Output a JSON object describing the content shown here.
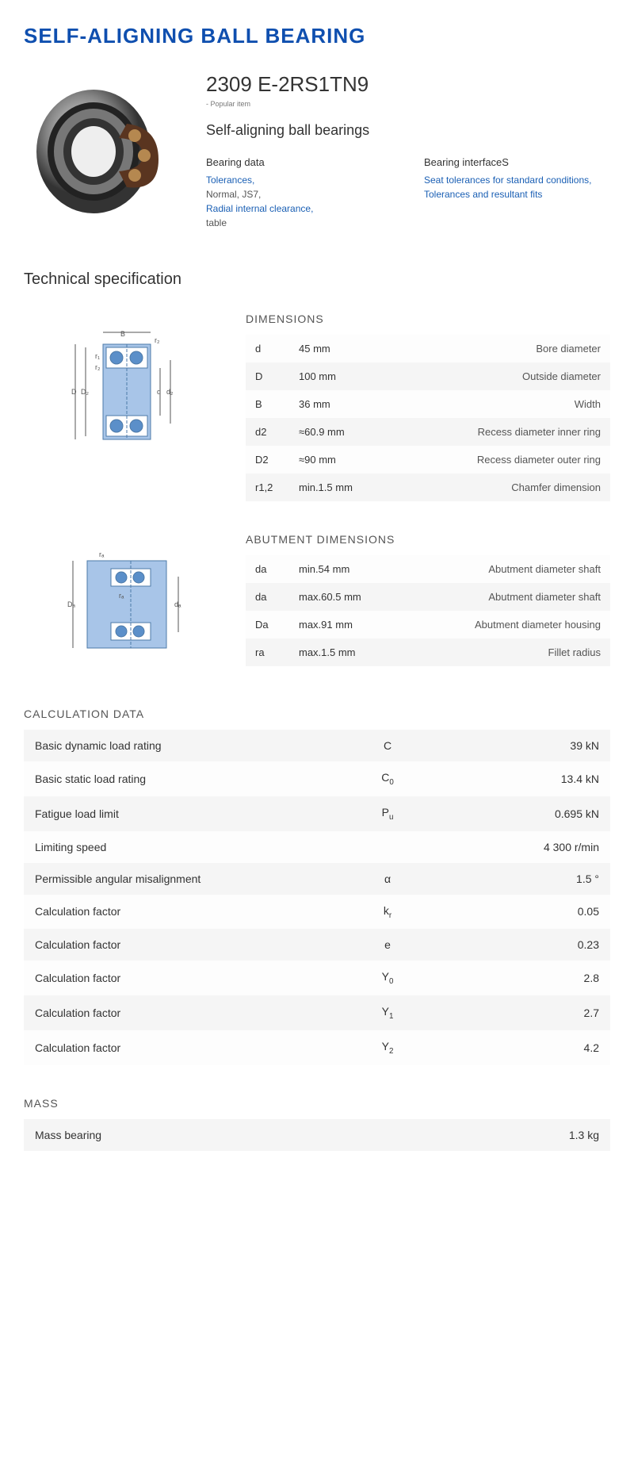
{
  "page_title": "SELF-ALIGNING BALL BEARING",
  "model_number": "2309 E-2RS1TN9",
  "popular_note": "- Popular item",
  "subtitle": "Self-aligning ball bearings",
  "bearing_data": {
    "title": "Bearing data",
    "links": [
      "Tolerances,"
    ],
    "plain": [
      "Normal, JS7,"
    ],
    "links2": [
      "Radial internal clearance,"
    ],
    "plain2": [
      "table"
    ]
  },
  "bearing_interface": {
    "title": "Bearing interfaceS",
    "links": [
      "Seat tolerances for standard conditions,",
      "Tolerances and resultant fits"
    ]
  },
  "tech_spec_title": "Technical specification",
  "dimensions": {
    "title": "DIMENSIONS",
    "rows": [
      {
        "sym": "d",
        "val": "45   mm",
        "desc": "Bore diameter"
      },
      {
        "sym": "D",
        "val": "100   mm",
        "desc": "Outside diameter"
      },
      {
        "sym": "B",
        "val": "36   mm",
        "desc": "Width"
      },
      {
        "sym": "d2",
        "val": "≈60.9 mm",
        "desc": "Recess diameter inner ring"
      },
      {
        "sym": "D2",
        "val": "≈90 mm",
        "desc": "Recess diameter outer ring"
      },
      {
        "sym": "r1,2",
        "val": "min.1.5 mm",
        "desc": "Chamfer dimension"
      }
    ]
  },
  "abutment": {
    "title": "ABUTMENT DIMENSIONS",
    "rows": [
      {
        "sym": "da",
        "val": "min.54 mm",
        "desc": "Abutment diameter shaft"
      },
      {
        "sym": "da",
        "val": "max.60.5 mm",
        "desc": "Abutment diameter shaft"
      },
      {
        "sym": "Da",
        "val": "max.91 mm",
        "desc": "Abutment diameter housing"
      },
      {
        "sym": "ra",
        "val": "max.1.5 mm",
        "desc": "Fillet radius"
      }
    ]
  },
  "calc": {
    "title": "CALCULATION DATA",
    "rows": [
      {
        "label": "Basic dynamic load rating",
        "sym": "C",
        "sub": "",
        "val": "39  kN"
      },
      {
        "label": "Basic static load rating",
        "sym": "C",
        "sub": "0",
        "val": "13.4  kN"
      },
      {
        "label": "Fatigue load limit",
        "sym": "P",
        "sub": "u",
        "val": "0.695  kN"
      },
      {
        "label": "Limiting speed",
        "sym": "",
        "sub": "",
        "val": "4 300  r/min"
      },
      {
        "label": "Permissible angular misalignment",
        "sym": "α",
        "sub": "",
        "val": "1.5  °"
      },
      {
        "label": "Calculation factor",
        "sym": "k",
        "sub": "r",
        "val": "0.05"
      },
      {
        "label": "Calculation factor",
        "sym": "e",
        "sub": "",
        "val": "0.23"
      },
      {
        "label": "Calculation factor",
        "sym": "Y",
        "sub": "0",
        "val": "2.8"
      },
      {
        "label": "Calculation factor",
        "sym": "Y",
        "sub": "1",
        "val": "2.7"
      },
      {
        "label": "Calculation factor",
        "sym": "Y",
        "sub": "2",
        "val": "4.2"
      }
    ]
  },
  "mass": {
    "title": "MASS",
    "label": "Mass bearing",
    "val": "1.3  kg"
  },
  "colors": {
    "brand_blue": "#0f4faf",
    "link_blue": "#1a5fb4",
    "row_alt": "#f5f5f5",
    "diagram_blue": "#5b8fc9",
    "diagram_lightblue": "#a8c5e8"
  }
}
